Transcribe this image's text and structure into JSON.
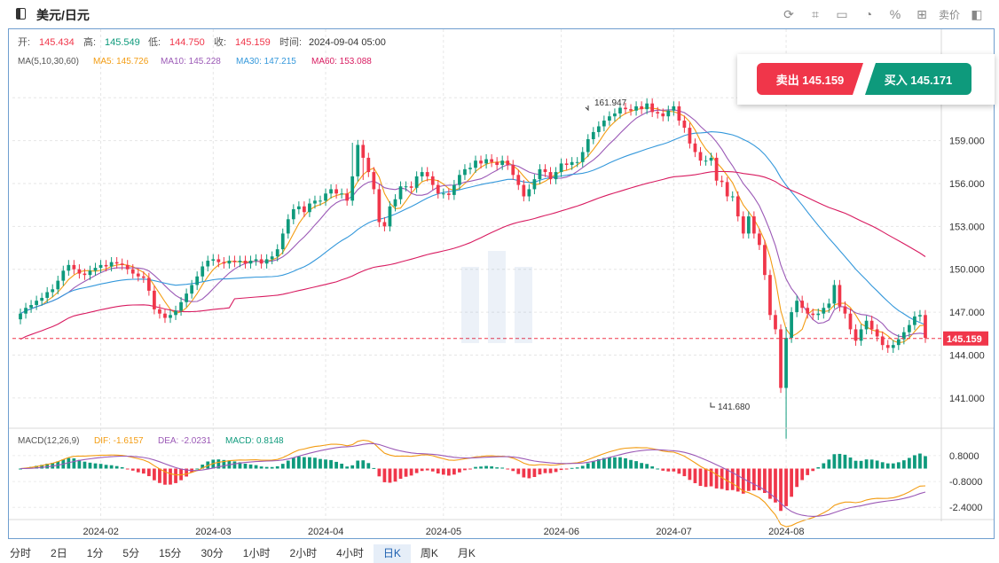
{
  "header": {
    "title": "美元/日元",
    "tools": [
      "refresh-icon",
      "draw-icon",
      "image-icon",
      "pie-icon",
      "percent-icon",
      "grid-icon"
    ],
    "sell_tag": "卖价"
  },
  "ohlc": {
    "open_label": "开:",
    "open": "145.434",
    "high_label": "高:",
    "high": "145.549",
    "low_label": "低:",
    "low": "144.750",
    "close_label": "收:",
    "close": "145.159",
    "time_label": "时间:",
    "time": "2024-09-04 05:00"
  },
  "ma": {
    "label": "MA(5,10,30,60)",
    "ma5": "MA5: 145.726",
    "ma10": "MA10: 145.228",
    "ma30": "MA30: 147.215",
    "ma60": "MA60: 153.088",
    "colors": {
      "ma5": "#f39c12",
      "ma10": "#9b59b6",
      "ma30": "#3498db",
      "ma60": "#d81b60"
    }
  },
  "macd": {
    "label": "MACD(12,26,9)",
    "dif": "DIF: -1.6157",
    "dea": "DEA: -2.0231",
    "macd": "MACD: 0.8148"
  },
  "price_axis": [
    "162.000",
    "159.000",
    "156.000",
    "153.000",
    "150.000",
    "147.000",
    "144.000",
    "141.000"
  ],
  "macd_axis": [
    "0.8000",
    "-0.8000",
    "-2.4000"
  ],
  "date_axis": [
    "2024-02",
    "2024-03",
    "2024-04",
    "2024-05",
    "2024-06",
    "2024-07",
    "2024-08"
  ],
  "current_price": "145.159",
  "annotations": {
    "high": "161.947",
    "low": "141.680"
  },
  "trade": {
    "sell": "卖出 145.159",
    "buy": "买入 145.171"
  },
  "periods": [
    "分时",
    "2日",
    "1分",
    "5分",
    "15分",
    "30分",
    "1小时",
    "2小时",
    "4小时",
    "日K",
    "周K",
    "月K"
  ],
  "active_period": "日K",
  "colors": {
    "up": "#0e9a7c",
    "down": "#f0364a",
    "grid": "#e3e3e3",
    "border": "#6f9ecf"
  },
  "chart_data": {
    "type": "candlestick",
    "title": "美元/日元",
    "ylim": [
      139.5,
      164.0
    ],
    "close": [
      146.9,
      147.3,
      147.5,
      147.8,
      148.0,
      148.4,
      148.6,
      149.2,
      149.9,
      150.3,
      150.0,
      149.7,
      149.6,
      149.9,
      150.1,
      150.3,
      150.2,
      150.5,
      150.4,
      150.3,
      150.0,
      149.7,
      149.5,
      149.4,
      148.5,
      147.2,
      146.9,
      146.6,
      146.8,
      147.1,
      147.7,
      148.3,
      148.9,
      149.5,
      150.2,
      150.6,
      150.7,
      150.5,
      150.4,
      150.6,
      150.5,
      150.6,
      150.4,
      150.6,
      150.7,
      150.4,
      150.7,
      150.9,
      151.4,
      152.5,
      153.5,
      154.2,
      154.4,
      154.0,
      154.6,
      154.8,
      154.8,
      155.3,
      155.6,
      155.3,
      155.3,
      154.8,
      156.5,
      158.7,
      157.8,
      156.8,
      155.6,
      153.3,
      153.0,
      154.4,
      154.9,
      155.8,
      155.8,
      155.7,
      156.5,
      156.8,
      156.5,
      155.9,
      155.3,
      155.3,
      155.2,
      155.9,
      156.6,
      157.0,
      157.1,
      157.6,
      157.4,
      157.7,
      157.5,
      157.3,
      157.6,
      157.3,
      156.6,
      155.9,
      155.1,
      155.6,
      156.3,
      157.0,
      156.8,
      156.3,
      156.8,
      157.4,
      157.3,
      157.5,
      157.5,
      158.2,
      159.1,
      159.6,
      160.0,
      160.4,
      160.7,
      160.9,
      161.3,
      161.2,
      161.1,
      161.4,
      161.2,
      161.6,
      161.0,
      160.9,
      160.7,
      161.1,
      161.4,
      160.4,
      159.9,
      158.8,
      158.2,
      157.6,
      157.6,
      157.8,
      156.2,
      156.1,
      155.1,
      155.1,
      153.7,
      152.5,
      153.7,
      152.5,
      151.7,
      149.6,
      146.8,
      145.8,
      141.7,
      145.2,
      147.0,
      147.8,
      147.3,
      146.9,
      146.8,
      146.9,
      147.3,
      147.6,
      148.9,
      147.4,
      146.9,
      145.8,
      145.0,
      145.8,
      146.4,
      145.8,
      145.3,
      144.7,
      144.5,
      144.7,
      145.1,
      145.6,
      146.1,
      146.7,
      146.8,
      145.2
    ],
    "dates_axis": [
      "2024-02",
      "2024-03",
      "2024-04",
      "2024-05",
      "2024-06",
      "2024-07",
      "2024-08"
    ]
  }
}
